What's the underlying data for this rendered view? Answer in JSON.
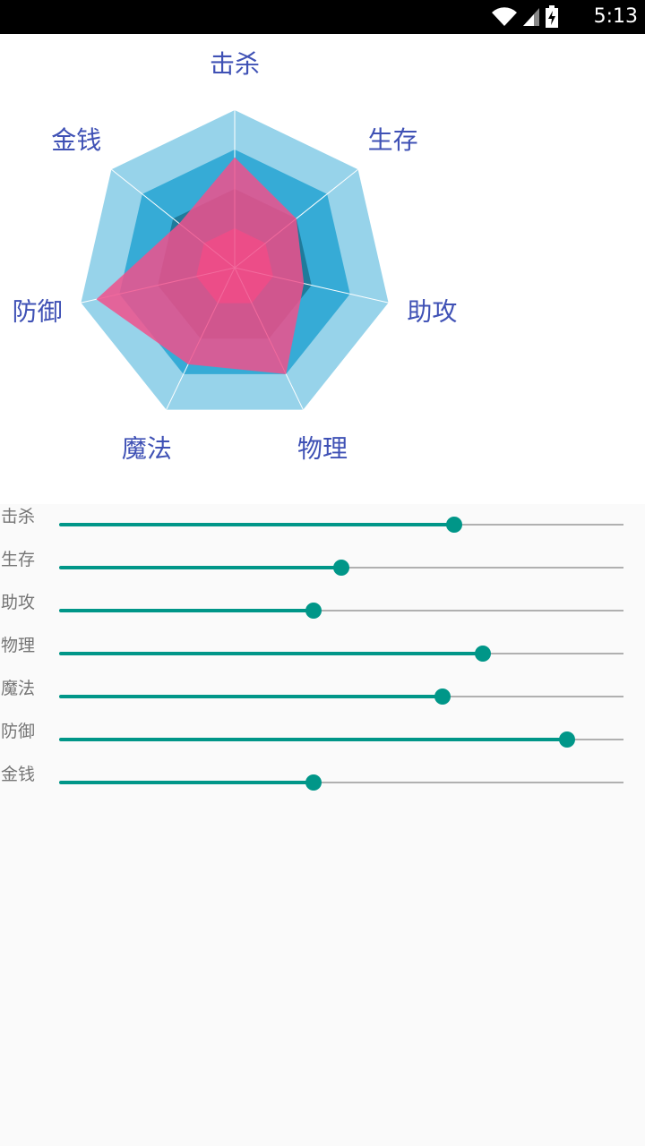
{
  "status_bar": {
    "time": "5:13",
    "icons": [
      "wifi-icon",
      "signal-icon",
      "battery-charging-icon"
    ]
  },
  "chart_data": {
    "type": "radar",
    "axes": [
      "击杀",
      "生存",
      "助攻",
      "物理",
      "魔法",
      "防御",
      "金钱"
    ],
    "values": [
      0.7,
      0.5,
      0.45,
      0.75,
      0.68,
      0.9,
      0.45
    ],
    "range": [
      0,
      1
    ],
    "levels": 4,
    "level_colors": [
      "#d63c70",
      "#1f7b9b",
      "#36abd6",
      "#97d3ea"
    ],
    "data_color": "#f0508c",
    "axis_label_color": "#3f51b5"
  },
  "sliders": [
    {
      "label": "击杀",
      "value": 0.7
    },
    {
      "label": "生存",
      "value": 0.5
    },
    {
      "label": "助攻",
      "value": 0.45
    },
    {
      "label": "物理",
      "value": 0.75
    },
    {
      "label": "魔法",
      "value": 0.68
    },
    {
      "label": "防御",
      "value": 0.9
    },
    {
      "label": "金钱",
      "value": 0.45
    }
  ],
  "colors": {
    "accent": "#009688",
    "track": "#b0b0b0",
    "label": "#757575"
  }
}
